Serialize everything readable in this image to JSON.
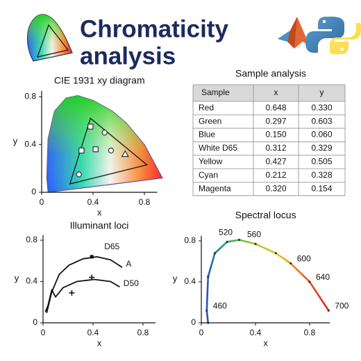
{
  "header": {
    "title_lines": [
      "Chromaticity",
      "analysis"
    ]
  },
  "chart_data": [
    {
      "type": "scatter",
      "title": "CIE 1931 xy diagram",
      "xlabel": "x",
      "ylabel": "y",
      "xlim": [
        0,
        0.9
      ],
      "ylim": [
        0,
        0.85
      ],
      "xticks": [
        0,
        0.4,
        0.8
      ],
      "yticks": [
        0,
        0.4,
        0.8
      ],
      "gamut_x": [
        0.38,
        0.22,
        0.82
      ],
      "gamut_y": [
        0.62,
        0.07,
        0.23
      ],
      "x": [
        0.38,
        0.49,
        0.31,
        0.42,
        0.54,
        0.65,
        0.29
      ],
      "y": [
        0.55,
        0.5,
        0.35,
        0.36,
        0.35,
        0.32,
        0.15
      ],
      "markers": [
        "square",
        "circle",
        "square",
        "square",
        "circle",
        "triangle",
        "circle"
      ]
    },
    {
      "type": "line",
      "title": "Illuminant loci",
      "xlabel": "x",
      "ylabel": "y",
      "xlim": [
        0,
        0.9
      ],
      "ylim": [
        0,
        0.85
      ],
      "xticks": [
        0,
        0.4,
        0.8
      ],
      "yticks": [
        0,
        0.4,
        0.8
      ],
      "series": [
        {
          "name": "A",
          "color": "#111111",
          "x": [
            0.03,
            0.07,
            0.13,
            0.21,
            0.32,
            0.43,
            0.54,
            0.63
          ],
          "y": [
            0.1,
            0.3,
            0.47,
            0.56,
            0.62,
            0.64,
            0.61,
            0.54
          ]
        },
        {
          "name": "D50",
          "color": "#111111",
          "x": [
            0.02,
            0.04,
            0.07,
            0.1,
            0.16,
            0.27,
            0.41,
            0.54,
            0.61
          ],
          "y": [
            0.11,
            0.17,
            0.32,
            0.25,
            0.34,
            0.4,
            0.42,
            0.4,
            0.35
          ]
        }
      ],
      "points": {
        "x": [
          0.39
        ],
        "y": [
          0.64
        ],
        "labels": [
          "D65"
        ]
      },
      "cross_points": {
        "x": [
          0.23,
          0.39
        ],
        "y": [
          0.29,
          0.44
        ]
      }
    },
    {
      "type": "line",
      "title": "Spectral locus",
      "xlabel": "x",
      "ylabel": "y",
      "xlim": [
        0,
        0.95
      ],
      "ylim": [
        0,
        0.85
      ],
      "xticks": [
        0,
        0.4,
        0.8
      ],
      "yticks": [
        0,
        0.4,
        0.8
      ],
      "series": [
        {
          "gradient": [
            "#2a3fd0",
            "#1fae5b",
            "#9ccc2a",
            "#f0c020",
            "#e8601c",
            "#e02020"
          ],
          "markers": true,
          "x": [
            0.05,
            0.04,
            0.05,
            0.1,
            0.19,
            0.28,
            0.4,
            0.55,
            0.66,
            0.8,
            0.94
          ],
          "y": [
            0.0,
            0.12,
            0.45,
            0.68,
            0.79,
            0.81,
            0.77,
            0.68,
            0.58,
            0.4,
            0.12
          ],
          "labels": [
            null,
            "460",
            null,
            null,
            "520",
            null,
            "560",
            null,
            "600",
            "640",
            "700"
          ]
        }
      ]
    }
  ],
  "table": {
    "title": "Sample analysis",
    "columns": [
      "Sample",
      "x",
      "y"
    ],
    "rows": [
      [
        "Red",
        "0.648",
        "0.330"
      ],
      [
        "Green",
        "0.297",
        "0.603"
      ],
      [
        "Blue",
        "0.150",
        "0.060"
      ],
      [
        "White D65",
        "0.312",
        "0.329"
      ],
      [
        "Yellow",
        "0.427",
        "0.505"
      ],
      [
        "Cyan",
        "0.212",
        "0.328"
      ],
      [
        "Magenta",
        "0.320",
        "0.154"
      ]
    ]
  }
}
